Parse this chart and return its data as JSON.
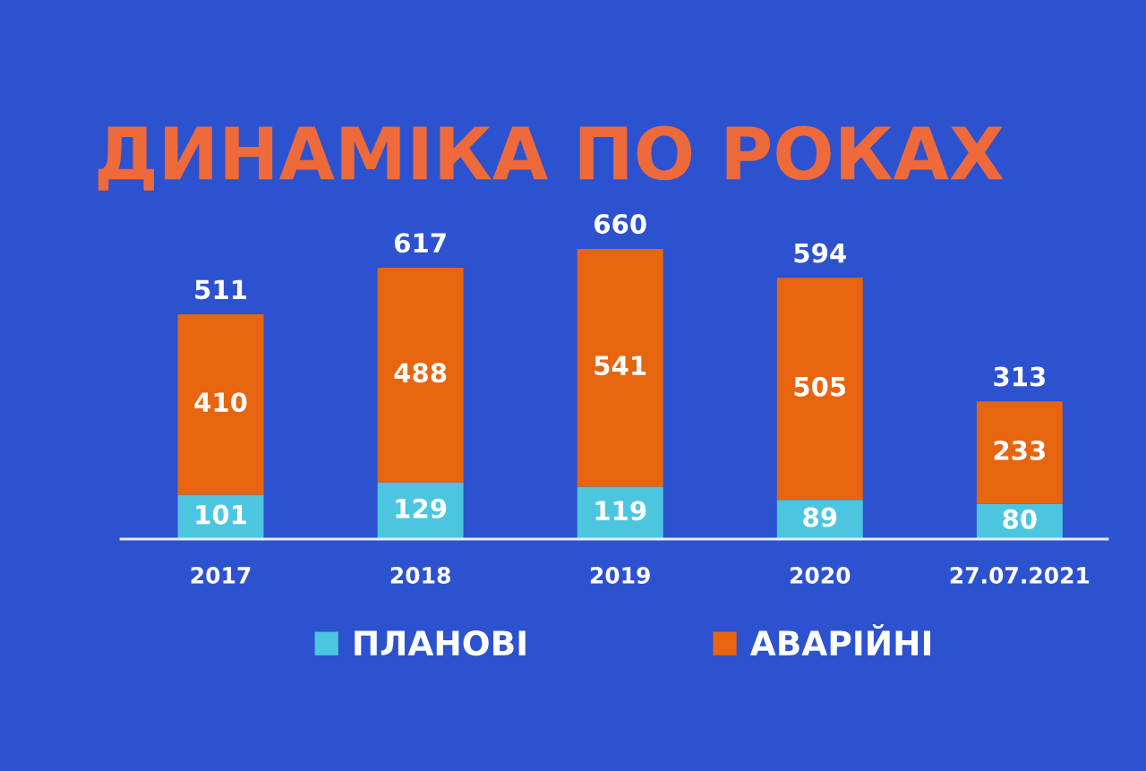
{
  "chart_data": {
    "type": "bar",
    "title": "ДИНАМІКА ПО РОКАХ",
    "categories": [
      "2017",
      "2018",
      "2019",
      "2020",
      "27.07.2021"
    ],
    "stacked": true,
    "series": [
      {
        "name": "ПЛАНОВІ",
        "color": "#4cc6e0",
        "values": [
          101,
          129,
          119,
          89,
          80
        ]
      },
      {
        "name": "АВАРІЙНІ",
        "color": "#e8650f",
        "values": [
          410,
          488,
          541,
          505,
          233
        ]
      }
    ],
    "data_labels": true,
    "totals": [
      "511",
      "617",
      "660",
      "594",
      "313"
    ],
    "legend": "bottom",
    "tick_labels": "x"
  }
}
